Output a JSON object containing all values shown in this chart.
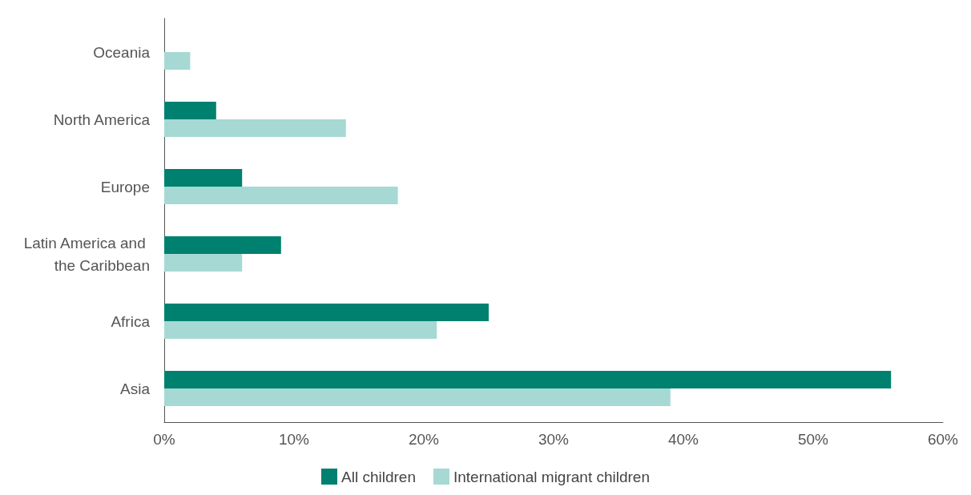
{
  "chart_data": {
    "type": "bar",
    "orientation": "horizontal",
    "categories": [
      "Oceania",
      "North America",
      "Europe",
      "Latin America and the Caribbean",
      "Africa",
      "Asia"
    ],
    "series": [
      {
        "name": "All children",
        "color": "#00806f",
        "values": [
          0,
          4,
          6,
          9,
          25,
          56
        ]
      },
      {
        "name": "International migrant children",
        "color": "#a6d9d3",
        "values": [
          2,
          14,
          18,
          6,
          21,
          39
        ]
      }
    ],
    "xlim": [
      0,
      60
    ],
    "xticks": [
      {
        "value": 0,
        "label": "0%"
      },
      {
        "value": 10,
        "label": "10%"
      },
      {
        "value": 20,
        "label": "20%"
      },
      {
        "value": 30,
        "label": "30%"
      },
      {
        "value": 40,
        "label": "40%"
      },
      {
        "value": 50,
        "label": "50%"
      },
      {
        "value": 60,
        "label": "60%"
      }
    ],
    "grid": false,
    "legend": "bottom"
  }
}
